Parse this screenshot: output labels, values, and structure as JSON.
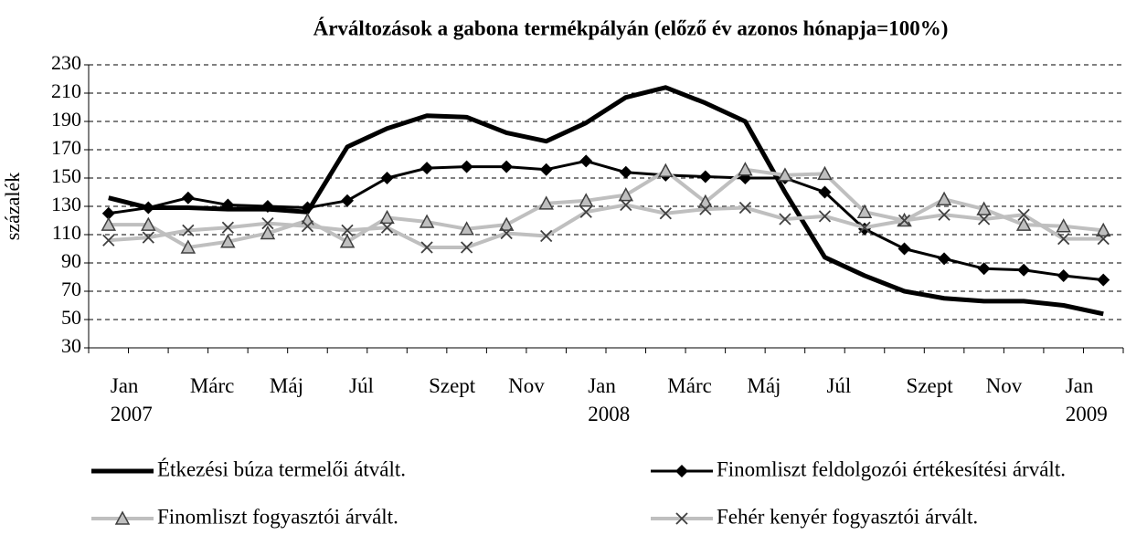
{
  "chart_data": {
    "type": "line",
    "title": "Árváltozások a gabona termékpályán (előző év azonos hónapja=100%)",
    "y_label": "százalék",
    "categories": [
      "Jan\n2007",
      null,
      "Márc",
      null,
      "Máj",
      null,
      "Júl",
      null,
      "Szept",
      null,
      "Nov",
      null,
      "Jan\n2008",
      null,
      "Márc",
      null,
      "Máj",
      null,
      "Júl",
      null,
      "Szept",
      null,
      "Nov",
      null,
      "Jan\n2009",
      null
    ],
    "ylim": [
      30,
      230
    ],
    "yticks": [
      30,
      50,
      70,
      90,
      110,
      130,
      150,
      170,
      190,
      210,
      230
    ],
    "grid": true,
    "series": [
      {
        "name": "Étkezési búza termelői átvált.",
        "color": "#000000",
        "line_width": 5,
        "marker": null,
        "values": [
          136,
          129,
          129,
          128,
          128,
          126,
          172,
          185,
          194,
          193,
          182,
          176,
          189,
          207,
          214,
          203,
          190,
          140,
          94,
          81,
          70,
          65,
          63,
          63,
          60,
          54
        ]
      },
      {
        "name": "Finomliszt feldolgozói értékesítési árvált.",
        "color": "#000000",
        "line_width": 3,
        "marker": "diamond",
        "marker_color": "#000000",
        "values": [
          125,
          129,
          136,
          131,
          130,
          129,
          134,
          150,
          157,
          158,
          158,
          156,
          162,
          154,
          152,
          151,
          150,
          150,
          140,
          114,
          100,
          93,
          86,
          85,
          81,
          78
        ]
      },
      {
        "name": "Finomliszt fogyasztói árvált.",
        "color": "#bfbfbf",
        "line_width": 4,
        "marker": "triangle",
        "marker_color": "#404040",
        "values": [
          117,
          117,
          101,
          105,
          111,
          120,
          105,
          122,
          119,
          114,
          117,
          132,
          134,
          138,
          155,
          133,
          156,
          152,
          153,
          126,
          120,
          135,
          128,
          117,
          116,
          113
        ]
      },
      {
        "name": "Fehér kenyér fogyasztói árvált.",
        "color": "#bfbfbf",
        "line_width": 4,
        "marker": "x",
        "marker_color": "#404040",
        "values": [
          106,
          108,
          113,
          115,
          118,
          116,
          113,
          115,
          101,
          101,
          111,
          109,
          126,
          131,
          125,
          128,
          129,
          121,
          123,
          115,
          120,
          124,
          121,
          124,
          107,
          107
        ]
      }
    ]
  }
}
